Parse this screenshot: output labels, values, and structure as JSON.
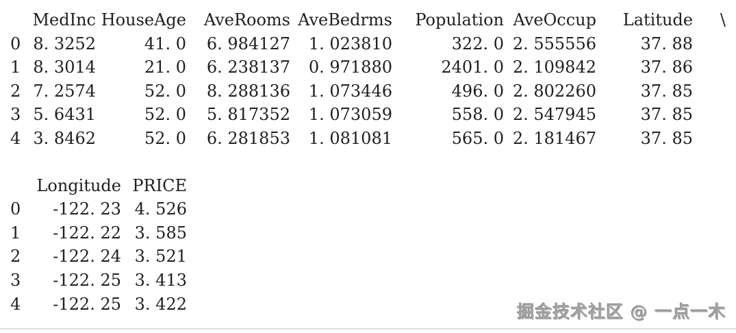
{
  "page": {
    "background": "#ffffff",
    "text_color": "#1f1f1f",
    "divider_color": "#dedede"
  },
  "output": {
    "table1": {
      "continuation_char": "\\",
      "columns": [
        "MedInc",
        "HouseAge",
        "AveRooms",
        "AveBedrms",
        "Population",
        "AveOccup",
        "Latitude"
      ],
      "index": [
        "0",
        "1",
        "2",
        "3",
        "4"
      ],
      "rows": [
        [
          "8.3252",
          "41.0",
          "6.984127",
          "1.023810",
          "322.0",
          "2.555556",
          "37.88"
        ],
        [
          "8.3014",
          "21.0",
          "6.238137",
          "0.971880",
          "2401.0",
          "2.109842",
          "37.86"
        ],
        [
          "7.2574",
          "52.0",
          "8.288136",
          "1.073446",
          "496.0",
          "2.802260",
          "37.85"
        ],
        [
          "5.6431",
          "52.0",
          "5.817352",
          "1.073059",
          "558.0",
          "2.547945",
          "37.85"
        ],
        [
          "3.8462",
          "52.0",
          "6.281853",
          "1.081081",
          "565.0",
          "2.181467",
          "37.85"
        ]
      ]
    },
    "table2": {
      "columns": [
        "Longitude",
        "PRICE"
      ],
      "index": [
        "0",
        "1",
        "2",
        "3",
        "4"
      ],
      "rows": [
        [
          "-122.23",
          "4.526"
        ],
        [
          "-122.22",
          "3.585"
        ],
        [
          "-122.24",
          "3.521"
        ],
        [
          "-122.25",
          "3.413"
        ],
        [
          "-122.25",
          "3.422"
        ]
      ]
    }
  },
  "watermark": {
    "text": "掘金技术社区 @ 一点一木",
    "color": "#a3a3a3"
  }
}
